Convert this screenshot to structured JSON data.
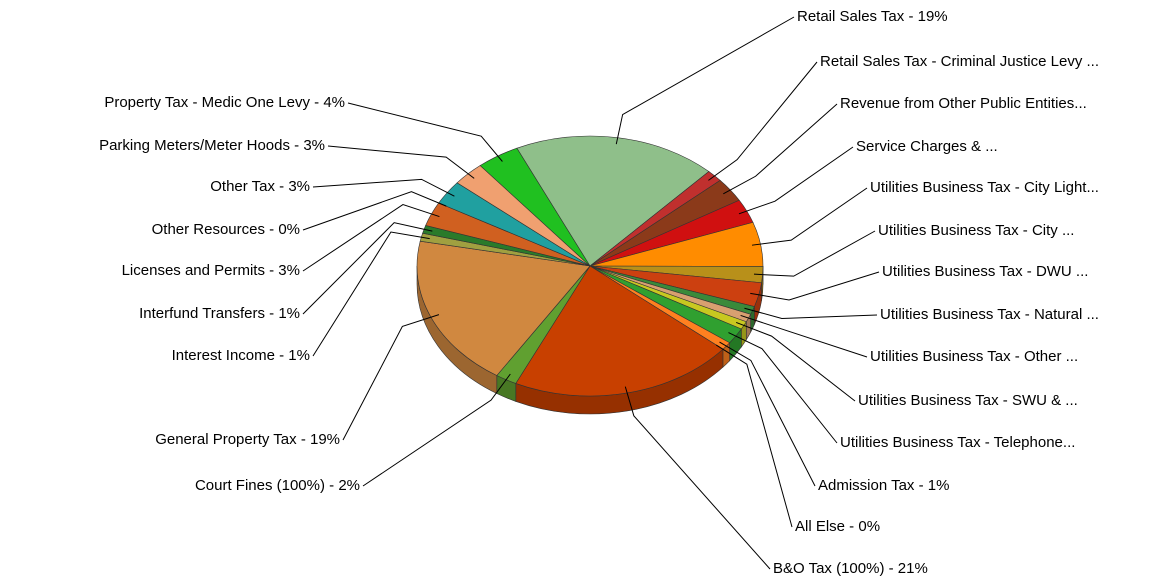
{
  "chart_data": {
    "type": "pie",
    "labels": [
      "Retail Sales Tax - 19%",
      "Retail Sales Tax - Criminal Justice Levy ...",
      "Revenue from Other Public Entities...",
      "Service Charges & ...",
      "Utilities Business Tax - City Light...",
      "Utilities Business Tax - City ...",
      "Utilities Business Tax - DWU ...",
      "Utilities Business Tax - Natural ...",
      "Utilities Business Tax - Other ...",
      "Utilities Business Tax - SWU & ...",
      "Utilities Business Tax - Telephone...",
      "Admission Tax - 1%",
      "All Else - 0%",
      "B&O Tax (100%) - 21%",
      "Court Fines (100%) - 2%",
      "General Property Tax - 19%",
      "Interest Income - 1%",
      "Interfund Transfers - 1%",
      "Licenses and Permits - 3%",
      "Other Resources - 0%",
      "Other Tax - 3%",
      "Parking Meters/Meter Hoods - 3%",
      "Property Tax - Medic One Levy - 4%"
    ],
    "values": [
      19,
      1.5,
      3,
      3,
      5.5,
      2,
      3,
      1,
      1,
      1,
      2,
      1,
      0,
      21,
      2,
      19,
      1,
      1,
      3,
      0,
      3,
      3,
      4
    ],
    "colors": [
      "#8fbf8a",
      "#c0302e",
      "#8b3a1a",
      "#d01010",
      "#ff8c00",
      "#b8901a",
      "#cc4010",
      "#3a8a3a",
      "#d8a070",
      "#c8c820",
      "#30a030",
      "#ff8020",
      "#b03010",
      "#c84000",
      "#60a030",
      "#d08840",
      "#a0a040",
      "#2a7a2a",
      "#d06020",
      "#805020",
      "#20a0a0",
      "#f0a070",
      "#20c020"
    ]
  }
}
